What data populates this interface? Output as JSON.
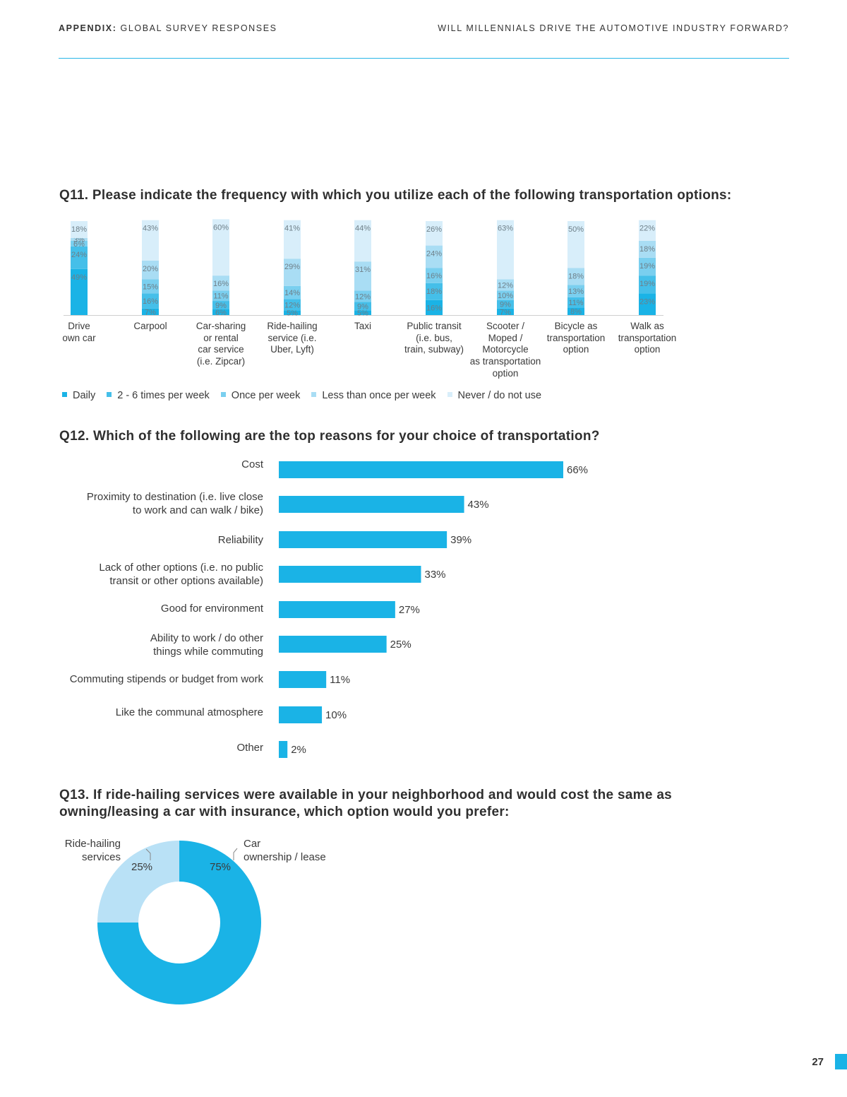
{
  "header": {
    "left_bold": "APPENDIX:",
    "left_rest": " GLOBAL SURVEY RESPONSES",
    "right": "WILL MILLENNIALS DRIVE THE AUTOMOTIVE INDUSTRY FORWARD?"
  },
  "page_number": "27",
  "colors": {
    "daily": "#1ab3e6",
    "two_six": "#45bfe9",
    "once": "#7acfef",
    "less_than_once": "#a9ddf4",
    "never": "#d8eefa",
    "bar": "#1ab3e6",
    "ride_hailing": "#b9e1f6"
  },
  "q11": {
    "title": "Q11. Please indicate the frequency with which you utilize each of the following transportation options:"
  },
  "q12": {
    "title": "Q12. Which of the following are the top reasons for your choice of transportation?"
  },
  "q13": {
    "title": "Q13. If ride-hailing services were available in your neighborhood and would cost the same as owning/leasing a car with insurance, which option would you prefer:"
  },
  "chart_data": [
    {
      "type": "bar",
      "stacked": true,
      "orientation": "vertical",
      "title": "Q11. Please indicate the frequency with which you utilize each of the following transportation options:",
      "categories": [
        "Drive\nown car",
        "Carpool",
        "Car-sharing\nor rental\ncar service\n(i.e. Zipcar)",
        "Ride-hailing\nservice (i.e.\nUber, Lyft)",
        "Taxi",
        "Public transit\n(i.e. bus,\ntrain, subway)",
        "Scooter /\nMoped /\nMotorcycle\nas transportation\noption",
        "Bicycle as\ntransportation\noption",
        "Walk as\ntransportation\noption"
      ],
      "series": [
        {
          "name": "Daily",
          "values": [
            49,
            7,
            6,
            5,
            5,
            16,
            7,
            8,
            23
          ]
        },
        {
          "name": "2 - 6 times per week",
          "values": [
            24,
            16,
            9,
            12,
            9,
            18,
            9,
            11,
            19
          ]
        },
        {
          "name": "Once per week",
          "values": [
            6,
            15,
            11,
            14,
            12,
            16,
            10,
            13,
            19
          ]
        },
        {
          "name": "Less than once per week",
          "values": [
            3,
            20,
            16,
            29,
            31,
            24,
            12,
            18,
            18
          ]
        },
        {
          "name": "Never / do not use",
          "values": [
            18,
            43,
            60,
            41,
            44,
            26,
            63,
            50,
            22
          ]
        }
      ],
      "value_suffix": "%",
      "legend_position": "bottom",
      "grid": false
    },
    {
      "type": "bar",
      "orientation": "horizontal",
      "title": "Q12. Which of the following are the top reasons for your choice of transportation?",
      "categories": [
        "Cost",
        "Proximity to destination (i.e. live close\nto work and can walk / bike)",
        "Reliability",
        "Lack of other options (i.e. no public\ntransit or other options available)",
        "Good for environment",
        "Ability to work / do other\nthings while commuting",
        "Commuting stipends or budget from work",
        "Like the communal atmosphere",
        "Other"
      ],
      "values": [
        66,
        43,
        39,
        33,
        27,
        25,
        11,
        10,
        2
      ],
      "value_suffix": "%",
      "grid": false
    },
    {
      "type": "pie",
      "donut": true,
      "title": "Q13. If ride-hailing services were available in your neighborhood and would cost the same as owning/leasing a car with insurance, which option would you prefer:",
      "categories": [
        "Car\nownership / lease",
        "Ride-hailing\nservices"
      ],
      "values": [
        75,
        25
      ],
      "value_suffix": "%"
    }
  ]
}
